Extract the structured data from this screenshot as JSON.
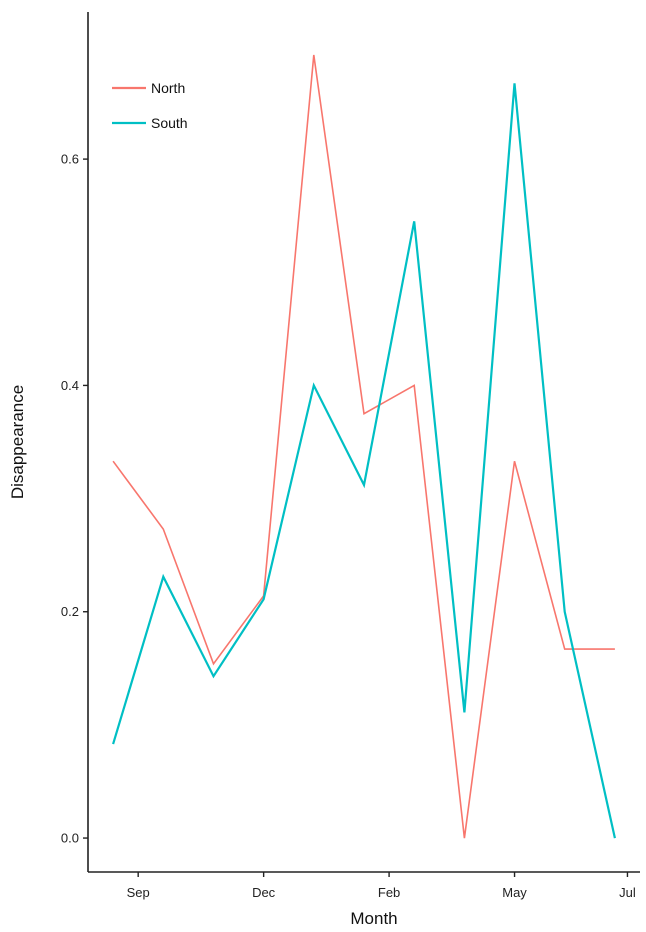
{
  "chart_data": {
    "type": "line",
    "xlabel": "Month",
    "ylabel": "Disappearance",
    "x_ticks": [
      "Sep",
      "Dec",
      "Feb",
      "May",
      "Jul"
    ],
    "x_tick_positions": [
      1.5,
      4.0,
      6.5,
      9.0,
      11.25
    ],
    "x": [
      1,
      2,
      3,
      4,
      5,
      6,
      7,
      8,
      9,
      10,
      11
    ],
    "xlim": [
      0.5,
      11.5
    ],
    "y_ticks": [
      "0.0",
      "0.2",
      "0.4",
      "0.6"
    ],
    "y_tick_values": [
      0.0,
      0.2,
      0.4,
      0.6
    ],
    "ylim": [
      -0.03,
      0.73
    ],
    "grid": false,
    "legend_position": "top-left",
    "series": [
      {
        "name": "North",
        "color": "#F8766D",
        "values": [
          0.333,
          0.273,
          0.154,
          0.214,
          0.692,
          0.375,
          0.4,
          0.0,
          0.333,
          0.167,
          0.167
        ]
      },
      {
        "name": "South",
        "color": "#00BFC4",
        "values": [
          0.083,
          0.231,
          0.143,
          0.211,
          0.4,
          0.312,
          0.545,
          0.111,
          0.667,
          0.2,
          0.0
        ]
      }
    ]
  }
}
